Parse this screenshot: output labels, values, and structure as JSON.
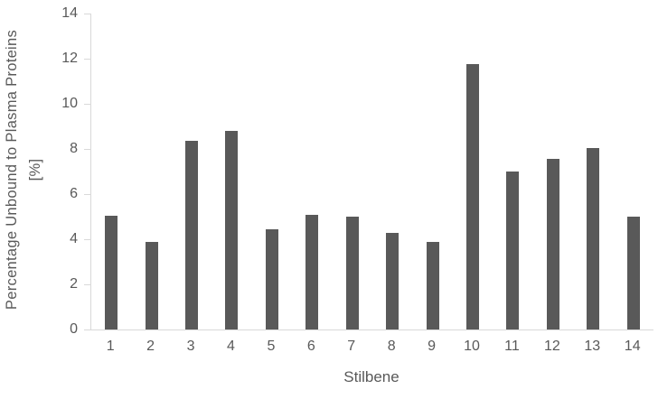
{
  "chart_data": {
    "type": "bar",
    "title": "",
    "xlabel": "Stilbene",
    "ylabel": "Percentage Unbound to Plasma Proteins [%]",
    "ylabel_lines": [
      "Percentage Unbound to Plasma Proteins",
      "[%]"
    ],
    "categories": [
      "1",
      "2",
      "3",
      "4",
      "5",
      "6",
      "7",
      "8",
      "9",
      "10",
      "11",
      "12",
      "13",
      "14"
    ],
    "values": [
      5.05,
      3.9,
      8.35,
      8.8,
      4.45,
      5.1,
      5.0,
      4.3,
      3.9,
      11.75,
      7.0,
      7.55,
      8.05,
      5.0
    ],
    "ylim": [
      0,
      14
    ],
    "yticks": [
      0,
      2,
      4,
      6,
      8,
      10,
      12,
      14
    ],
    "grid": false,
    "legend": false,
    "bar_color": "#595959",
    "axis_color": "#d9d9d9",
    "text_color": "#595959"
  }
}
